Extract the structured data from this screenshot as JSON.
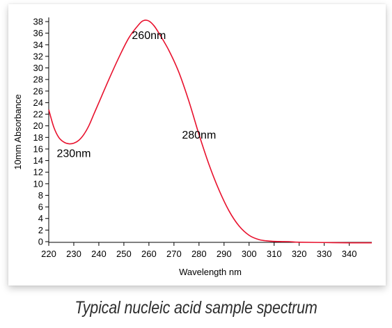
{
  "chart_data": {
    "type": "line",
    "xlabel": "Wavelength nm",
    "ylabel": "10mm Absorbance",
    "xlim": [
      220,
      349
    ],
    "ylim": [
      0,
      38
    ],
    "x_ticks": [
      220,
      230,
      240,
      250,
      260,
      270,
      280,
      290,
      300,
      310,
      320,
      330,
      340
    ],
    "y_ticks": [
      0,
      2,
      4,
      6,
      8,
      10,
      12,
      14,
      16,
      18,
      20,
      22,
      24,
      26,
      28,
      30,
      32,
      34,
      36,
      38
    ],
    "grid": false,
    "series": [
      {
        "color": "#e8112d",
        "x": [
          220,
          222,
          224,
          226,
          228,
          230,
          232,
          234,
          236,
          238,
          240,
          244,
          248,
          252,
          256,
          258,
          260,
          262,
          264,
          268,
          272,
          276,
          280,
          284,
          288,
          292,
          296,
          300,
          304,
          308,
          312,
          316,
          320,
          330,
          340,
          349
        ],
        "y": [
          22.8,
          19.8,
          18.0,
          17.2,
          16.9,
          17.0,
          17.5,
          18.5,
          20.0,
          22.0,
          24.0,
          28.0,
          31.8,
          35.2,
          37.5,
          38.2,
          38.1,
          37.3,
          36.0,
          33.0,
          29.2,
          24.2,
          18.5,
          13.3,
          8.9,
          5.3,
          2.7,
          1.1,
          0.35,
          0.1,
          0.02,
          0.0,
          -0.1,
          -0.15,
          -0.2,
          -0.2
        ]
      }
    ],
    "annotations": [
      {
        "text": "230nm",
        "x": 230,
        "y": 14.6
      },
      {
        "text": "260nm",
        "x": 260,
        "y": 35.0
      },
      {
        "text": "280nm",
        "x": 280,
        "y": 17.8
      }
    ]
  },
  "caption": "Typical nucleic acid sample spectrum"
}
